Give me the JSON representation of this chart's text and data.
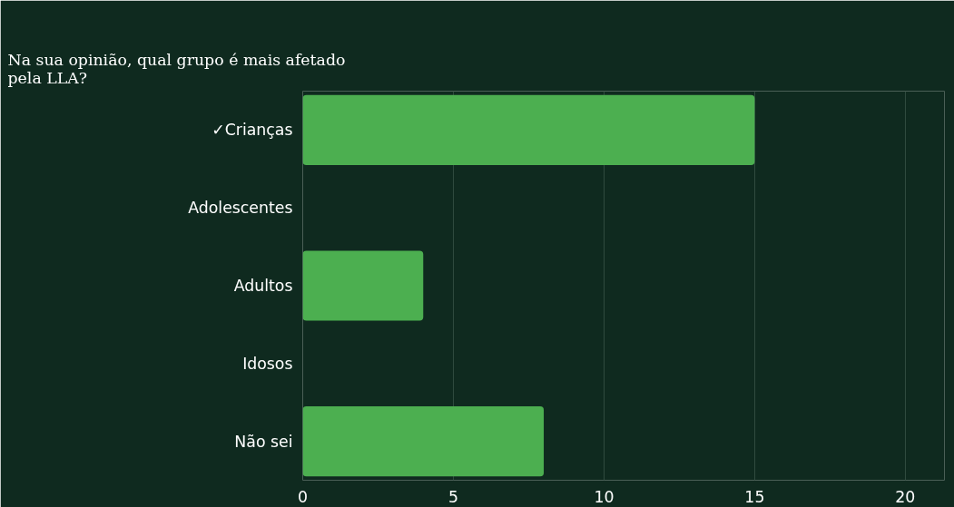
{
  "chart_data": {
    "type": "bar",
    "orientation": "horizontal",
    "title": "Na sua opinião, qual grupo é mais afetado pela LLA?",
    "categories": [
      "✓Crianças",
      "Adolescentes",
      "Adultos",
      "Idosos",
      "Não sei"
    ],
    "values": [
      15,
      0,
      4,
      0,
      8
    ],
    "color": "#4caf50",
    "xlim": [
      0,
      21.3
    ],
    "xticks": [
      0,
      5,
      10,
      15,
      20
    ],
    "grid": "x"
  }
}
